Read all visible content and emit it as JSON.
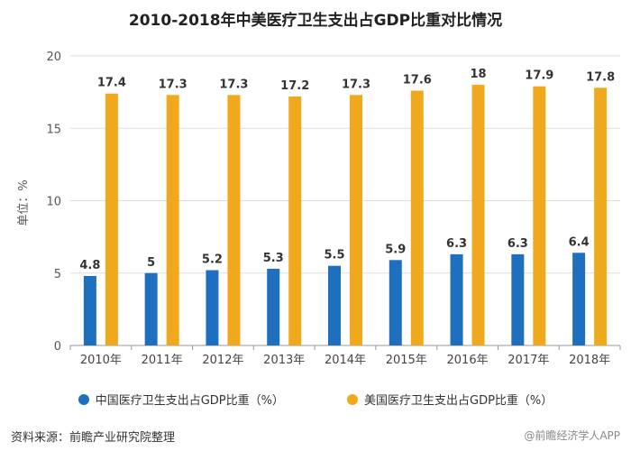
{
  "chart_data": {
    "type": "bar",
    "title": "2010-2018年中美医疗卫生支出占GDP比重对比情况",
    "ylabel": "单位：%",
    "xlabel": "",
    "ylim": [
      0,
      20
    ],
    "yticks": [
      0,
      5,
      10,
      15,
      20
    ],
    "grid": true,
    "legend_position": "bottom",
    "categories": [
      "2010年",
      "2011年",
      "2012年",
      "2013年",
      "2014年",
      "2015年",
      "2016年",
      "2017年",
      "2018年"
    ],
    "series": [
      {
        "name": "中国医疗卫生支出占GDP比重（%）",
        "color": "#1f6fbf",
        "values": [
          4.8,
          5,
          5.2,
          5.3,
          5.5,
          5.9,
          6.3,
          6.3,
          6.4
        ]
      },
      {
        "name": "美国医疗卫生支出占GDP比重（%）",
        "color": "#f0a81c",
        "values": [
          17.4,
          17.3,
          17.3,
          17.2,
          17.3,
          17.6,
          18,
          17.9,
          17.8
        ]
      }
    ]
  },
  "footer": {
    "source": "资料来源：前瞻产业研究院整理",
    "watermark": "@前瞻经济学人APP"
  },
  "legend_icon": "circle-swatch"
}
